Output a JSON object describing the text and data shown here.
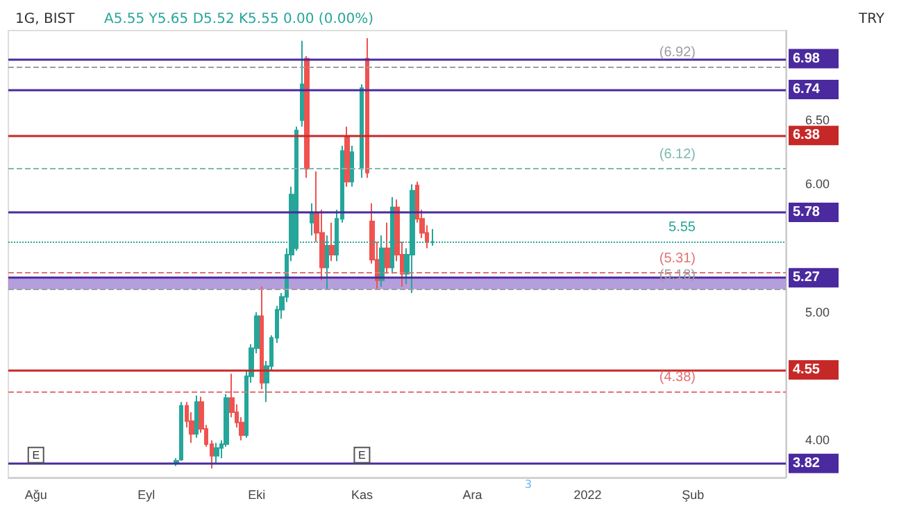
{
  "chart_data": {
    "type": "candlestick",
    "title": "1G, BIST",
    "subtitle": "A5.55 Y5.65 D5.52 K5.55 0.00 (0.00%)",
    "ylabel": "TRY",
    "categories": [
      null,
      null,
      null,
      null,
      null,
      "Ağu",
      null,
      null,
      null,
      null,
      null,
      null,
      null,
      null,
      null,
      null,
      null,
      null,
      null,
      null,
      null,
      null,
      null,
      null,
      null,
      null,
      null,
      "Eyl",
      null,
      null,
      null,
      null,
      null,
      null,
      null,
      null,
      null,
      null,
      null,
      null,
      null,
      null,
      null,
      null,
      null,
      null,
      null,
      null,
      null,
      "Eki",
      null,
      null,
      null,
      null,
      null,
      null,
      null,
      null,
      null,
      null,
      null,
      null,
      null,
      null,
      null,
      null,
      null,
      null,
      null,
      null,
      "Kas",
      null,
      null,
      null,
      null,
      null,
      null,
      null,
      null,
      null,
      null,
      null,
      null,
      null,
      null,
      null,
      null,
      null,
      null,
      null,
      null,
      null,
      "Ara",
      null,
      null,
      null,
      null,
      null,
      null,
      null,
      null,
      null,
      null,
      null,
      null,
      null,
      null,
      null,
      null,
      null,
      null,
      null,
      null,
      null,
      null,
      "2022",
      null,
      null,
      null,
      null,
      null,
      null,
      null,
      null,
      null,
      null,
      null,
      null,
      null,
      null,
      null,
      null,
      null,
      null,
      null,
      null,
      "Şub",
      null,
      null,
      null,
      null,
      null,
      null,
      null,
      null,
      null,
      null,
      null,
      null,
      null,
      null,
      null,
      null,
      null,
      null
    ],
    "ohlc": [
      null,
      null,
      null,
      null,
      null,
      null,
      null,
      null,
      null,
      null,
      null,
      null,
      null,
      null,
      null,
      null,
      null,
      null,
      null,
      null,
      null,
      null,
      null,
      null,
      null,
      null,
      null,
      null,
      null,
      null,
      null,
      null,
      null,
      [
        3.82,
        3.86,
        3.8,
        3.84
      ],
      [
        3.85,
        4.3,
        3.84,
        4.27
      ],
      [
        4.27,
        4.3,
        4.1,
        4.15
      ],
      [
        4.15,
        4.22,
        3.98,
        4.05
      ],
      [
        4.05,
        4.35,
        4.02,
        4.3
      ],
      [
        4.3,
        4.34,
        4.06,
        4.09
      ],
      [
        4.09,
        4.12,
        3.95,
        3.97
      ],
      [
        3.97,
        4.0,
        3.78,
        3.88
      ],
      [
        3.88,
        3.98,
        3.82,
        3.94
      ],
      [
        3.94,
        4.0,
        3.86,
        3.97
      ],
      [
        3.97,
        4.36,
        3.95,
        4.33
      ],
      [
        4.33,
        4.52,
        4.18,
        4.22
      ],
      [
        4.22,
        4.28,
        4.1,
        4.14
      ],
      [
        4.14,
        4.18,
        4.0,
        4.04
      ],
      [
        4.04,
        4.55,
        4.02,
        4.5
      ],
      [
        4.5,
        4.75,
        4.45,
        4.72
      ],
      [
        4.72,
        5.0,
        4.68,
        4.97
      ],
      [
        4.97,
        5.2,
        4.4,
        4.45
      ],
      [
        4.45,
        4.62,
        4.3,
        4.58
      ],
      [
        4.58,
        4.82,
        4.55,
        4.8
      ],
      [
        4.8,
        5.05,
        4.76,
        5.02
      ],
      [
        5.02,
        5.15,
        4.95,
        5.12
      ],
      [
        5.12,
        5.5,
        5.08,
        5.45
      ],
      [
        5.45,
        5.98,
        5.4,
        5.92
      ],
      [
        5.5,
        6.45,
        5.48,
        6.42
      ],
      [
        6.5,
        7.12,
        6.45,
        6.78
      ],
      [
        6.98,
        7.0,
        6.05,
        6.12
      ],
      [
        5.7,
        5.85,
        5.6,
        5.78
      ],
      [
        5.78,
        6.1,
        5.55,
        5.62
      ],
      [
        5.62,
        5.8,
        5.25,
        5.35
      ],
      [
        5.35,
        5.6,
        5.18,
        5.52
      ],
      [
        5.52,
        5.7,
        5.4,
        5.45
      ],
      [
        5.45,
        5.8,
        5.4,
        5.73
      ],
      [
        5.73,
        6.3,
        5.7,
        6.26
      ],
      [
        6.37,
        6.45,
        5.98,
        6.02
      ],
      [
        6.02,
        6.3,
        5.98,
        6.25
      ],
      null,
      [
        6.12,
        6.78,
        6.05,
        6.75
      ],
      [
        6.98,
        7.14,
        6.05,
        6.09
      ],
      [
        5.71,
        5.85,
        5.38,
        5.41
      ],
      [
        5.41,
        5.55,
        5.18,
        5.25
      ],
      [
        5.25,
        5.6,
        5.2,
        5.5
      ],
      [
        5.5,
        5.7,
        5.3,
        5.35
      ],
      [
        5.35,
        5.9,
        5.3,
        5.82
      ],
      [
        5.82,
        5.88,
        5.4,
        5.45
      ],
      [
        5.45,
        5.55,
        5.2,
        5.3
      ],
      [
        5.3,
        5.5,
        5.22,
        5.45
      ],
      [
        5.45,
        6.0,
        5.15,
        5.95
      ],
      [
        5.99,
        6.02,
        5.7,
        5.73
      ],
      [
        5.73,
        5.8,
        5.58,
        5.62
      ],
      [
        5.62,
        5.68,
        5.5,
        5.55
      ],
      [
        5.55,
        5.65,
        5.52,
        5.55
      ],
      null,
      null,
      null,
      null,
      null,
      null,
      null,
      null,
      null,
      null,
      null,
      null,
      null,
      null,
      null,
      null,
      null,
      null,
      null,
      null,
      null,
      null,
      null,
      null,
      null,
      null,
      null,
      null,
      null,
      null,
      null,
      null,
      null,
      null,
      null,
      null,
      null,
      null,
      null,
      null,
      null,
      null,
      null,
      null,
      null,
      null,
      null,
      null,
      null,
      null,
      null,
      null,
      null,
      null,
      null,
      null,
      null,
      null,
      null,
      null,
      null,
      null,
      null,
      null,
      null,
      null,
      null,
      null,
      null,
      null
    ],
    "colors": [
      null,
      null,
      null,
      null,
      null,
      null,
      null,
      null,
      null,
      null,
      null,
      null,
      null,
      null,
      null,
      null,
      null,
      null,
      null,
      null,
      null,
      null,
      null,
      null,
      null,
      null,
      null,
      null,
      null,
      null,
      null,
      null,
      null,
      "#26a69a",
      "#26a69a",
      "#ef5350",
      "#ef5350",
      "#26a69a",
      "#ef5350",
      "#ef5350",
      "#ef5350",
      "#26a69a",
      "#26a69a",
      "#26a69a",
      "#ef5350",
      "#ef5350",
      "#ef5350",
      "#26a69a",
      "#26a69a",
      "#26a69a",
      "#ef5350",
      "#26a69a",
      "#26a69a",
      "#26a69a",
      "#26a69a",
      "#26a69a",
      "#26a69a",
      "#26a69a",
      "#26a69a",
      "#ef5350",
      "#26a69a",
      "#ef5350",
      "#ef5350",
      "#26a69a",
      "#ef5350",
      "#26a69a",
      "#26a69a",
      "#ef5350",
      "#26a69a",
      null,
      "#26a69a",
      "#ef5350",
      "#ef5350",
      "#ef5350",
      "#26a69a",
      "#ef5350",
      "#26a69a",
      "#ef5350",
      "#ef5350",
      "#26a69a",
      "#26a69a",
      "#ef5350",
      "#ef5350",
      "#ef5350",
      "#26a69a",
      null,
      null,
      null,
      null,
      null,
      null,
      null,
      null,
      null,
      null,
      null,
      null,
      null,
      null,
      null,
      null,
      null,
      null,
      null,
      null,
      null,
      null,
      null,
      null,
      null,
      null,
      null,
      null,
      null,
      null,
      null,
      null,
      null,
      null,
      null,
      null,
      null,
      null,
      null,
      null,
      null,
      null,
      null,
      null,
      null,
      null,
      null,
      null,
      null,
      null,
      null,
      null,
      null,
      null,
      null,
      null,
      null,
      null,
      null,
      null,
      null,
      null,
      null,
      null,
      null,
      null,
      null,
      null,
      null,
      null
    ],
    "ylim": [
      3.71,
      7.2
    ],
    "yticks": [
      {
        "value": 4,
        "label": "4.00"
      },
      {
        "value": 5,
        "label": "5.00"
      },
      {
        "value": 6,
        "label": "6.00"
      },
      {
        "value": 6.5,
        "label": "6.50"
      }
    ],
    "grid": false,
    "ref_lines": [
      {
        "axis": "y",
        "value": 6.98,
        "label": "6.98",
        "color": "#4a2a9e",
        "line_style": "solid"
      },
      {
        "axis": "y",
        "value": 6.92,
        "label": "(6.92)",
        "color": "#9e9e9e",
        "line_style": "dashed"
      },
      {
        "axis": "y",
        "value": 6.74,
        "label": "6.74",
        "color": "#4a2a9e",
        "line_style": "solid"
      },
      {
        "axis": "y",
        "value": 6.38,
        "label": "6.38",
        "color": "#c62828",
        "line_style": "solid"
      },
      {
        "axis": "y",
        "value": 6.12,
        "label": "(6.12)",
        "color": "#7fb8b0",
        "line_style": "dashed"
      },
      {
        "axis": "y",
        "value": 5.78,
        "label": "5.78",
        "color": "#4a2a9e",
        "line_style": "solid"
      },
      {
        "axis": "y",
        "value": 5.55,
        "label": "5.55",
        "color": "#26a69a",
        "line_style": "dotted"
      },
      {
        "axis": "y",
        "value": 5.31,
        "label": "(5.31)",
        "color": "#e57373",
        "line_style": "dashed"
      },
      {
        "axis": "y",
        "value": 5.27,
        "label": "5.27",
        "color": "#4a2a9e",
        "line_style": "solid"
      },
      {
        "axis": "y",
        "value": 5.18,
        "label": "(5.18)",
        "color": "#9e9e9e",
        "line_style": "dashed"
      },
      {
        "axis": "y",
        "value": 4.55,
        "label": "4.55",
        "color": "#c62828",
        "line_style": "solid"
      },
      {
        "axis": "y",
        "value": 4.38,
        "label": "(4.38)",
        "color": "#e57373",
        "line_style": "dashed"
      },
      {
        "axis": "y",
        "value": 3.82,
        "label": "3.82",
        "color": "#4a2a9e",
        "line_style": "solid"
      }
    ],
    "bands": [
      {
        "axis": "y",
        "from": 5.18,
        "to": 5.27,
        "color": "#9575cd"
      }
    ],
    "annotations": [
      {
        "text": "E",
        "x": "Ağu",
        "y": 3.82
      },
      {
        "text": "E",
        "x": "Kas",
        "y": 3.82
      },
      "3"
    ]
  }
}
